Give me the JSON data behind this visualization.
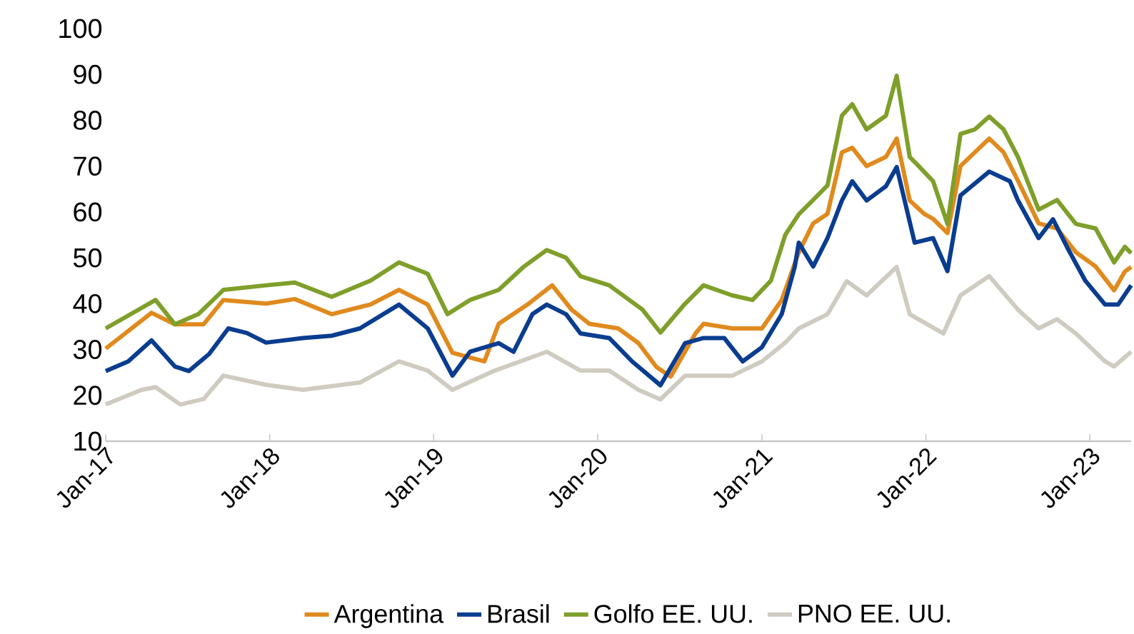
{
  "chart_data": {
    "type": "line",
    "xlim": [
      "2017-01-01",
      "2023-04-03"
    ],
    "xticks": [
      {
        "value": "2017-01-01",
        "label": "Jan-17"
      },
      {
        "value": "2018-01-01",
        "label": "Jan-18"
      },
      {
        "value": "2019-01-01",
        "label": "Jan-19"
      },
      {
        "value": "2020-01-01",
        "label": "Jan-20"
      },
      {
        "value": "2021-01-01",
        "label": "Jan-21"
      },
      {
        "value": "2022-01-01",
        "label": "Jan-22"
      },
      {
        "value": "2023-01-01",
        "label": "Jan-23"
      }
    ],
    "ylim": [
      10,
      100
    ],
    "yticks": [
      10,
      20,
      30,
      40,
      50,
      60,
      70,
      80,
      90,
      100
    ],
    "legend": "bottom",
    "series": [
      {
        "name": "Argentina",
        "color": "#e08a1e",
        "x": [
          "2017-01-01",
          "2017-04-13",
          "2017-06-04",
          "2017-08-07",
          "2017-09-20",
          "2017-12-24",
          "2018-02-26",
          "2018-05-19",
          "2018-08-13",
          "2018-10-16",
          "2018-12-19",
          "2019-02-12",
          "2019-04-24",
          "2019-05-26",
          "2019-07-29",
          "2019-09-22",
          "2019-11-04",
          "2019-12-14",
          "2020-02-16",
          "2020-04-01",
          "2020-05-11",
          "2020-06-12",
          "2020-08-06",
          "2020-08-24",
          "2020-10-27",
          "2021-01-01",
          "2021-02-14",
          "2021-03-24",
          "2021-04-25",
          "2021-05-27",
          "2021-06-28",
          "2021-07-21",
          "2021-08-22",
          "2021-10-04",
          "2021-10-28",
          "2021-11-26",
          "2021-12-28",
          "2022-01-17",
          "2022-02-18",
          "2022-03-19",
          "2022-05-22",
          "2022-06-23",
          "2022-07-25",
          "2022-09-09",
          "2022-10-20",
          "2022-12-01",
          "2023-01-14",
          "2023-02-24",
          "2023-03-20",
          "2023-04-03"
        ],
        "values": [
          30.2,
          38,
          35.5,
          35.5,
          40.8,
          40,
          41,
          37.7,
          39.8,
          43,
          39.8,
          29.3,
          27.4,
          35.6,
          39.8,
          44,
          38.7,
          35.6,
          34.6,
          31.4,
          26.2,
          24.1,
          33.5,
          35.6,
          34.6,
          34.6,
          40.8,
          51.2,
          57.5,
          59.6,
          73,
          74,
          70,
          72,
          76,
          62.5,
          59.6,
          58.5,
          55.4,
          70,
          76,
          73,
          66.8,
          57.5,
          56.4,
          51.2,
          48.1,
          42.9,
          47,
          48
        ]
      },
      {
        "name": "Brasil",
        "color": "#0a3d8f",
        "x": [
          "2017-01-01",
          "2017-02-20",
          "2017-04-13",
          "2017-06-04",
          "2017-07-05",
          "2017-08-19",
          "2017-10-01",
          "2017-11-11",
          "2017-12-24",
          "2018-03-16",
          "2018-05-19",
          "2018-07-21",
          "2018-10-16",
          "2018-12-19",
          "2019-02-12",
          "2019-03-23",
          "2019-05-26",
          "2019-06-28",
          "2019-08-09",
          "2019-09-10",
          "2019-10-23",
          "2019-11-24",
          "2020-01-27",
          "2020-03-18",
          "2020-05-20",
          "2020-07-14",
          "2020-08-24",
          "2020-10-09",
          "2020-11-19",
          "2021-01-01",
          "2021-02-14",
          "2021-03-15",
          "2021-03-24",
          "2021-04-25",
          "2021-05-27",
          "2021-06-28",
          "2021-07-21",
          "2021-08-22",
          "2021-10-04",
          "2021-10-28",
          "2021-12-07",
          "2022-01-17",
          "2022-02-18",
          "2022-03-19",
          "2022-05-22",
          "2022-07-07",
          "2022-07-25",
          "2022-09-09",
          "2022-10-11",
          "2022-11-12",
          "2022-12-22",
          "2023-02-04",
          "2023-03-05",
          "2023-04-03"
        ],
        "values": [
          25.3,
          27.4,
          32,
          26.3,
          25.3,
          29,
          34.6,
          33.6,
          31.5,
          32.5,
          33,
          34.6,
          39.8,
          34.6,
          24.3,
          29.5,
          31.4,
          29.5,
          37.7,
          39.8,
          37.7,
          33.5,
          32.5,
          27.4,
          22.2,
          31.4,
          32.5,
          32.5,
          27.4,
          30.5,
          37.7,
          48,
          53.3,
          48.1,
          54.3,
          62.5,
          66.7,
          62.5,
          65.6,
          69.8,
          53.3,
          54.3,
          47.1,
          63.6,
          68.8,
          66.7,
          62.5,
          54.3,
          58.4,
          52.2,
          45,
          39.8,
          39.8,
          44
        ]
      },
      {
        "name": "Golfo EE. UU.",
        "color": "#7f9f2a",
        "x": [
          "2017-01-01",
          "2017-04-22",
          "2017-06-04",
          "2017-07-26",
          "2017-09-20",
          "2017-12-24",
          "2018-02-26",
          "2018-05-19",
          "2018-08-13",
          "2018-10-16",
          "2018-12-19",
          "2019-02-01",
          "2019-03-23",
          "2019-05-26",
          "2019-07-20",
          "2019-09-10",
          "2019-10-23",
          "2019-11-24",
          "2020-01-27",
          "2020-04-10",
          "2020-05-20",
          "2020-07-14",
          "2020-08-24",
          "2020-10-27",
          "2020-12-11",
          "2021-01-21",
          "2021-02-22",
          "2021-03-24",
          "2021-04-25",
          "2021-05-27",
          "2021-06-28",
          "2021-07-21",
          "2021-08-22",
          "2021-10-04",
          "2021-10-28",
          "2021-11-26",
          "2021-12-16",
          "2022-01-17",
          "2022-02-18",
          "2022-03-19",
          "2022-04-20",
          "2022-05-22",
          "2022-06-23",
          "2022-07-25",
          "2022-09-09",
          "2022-10-20",
          "2022-12-01",
          "2023-01-14",
          "2023-02-24",
          "2023-03-20",
          "2023-04-03"
        ],
        "values": [
          34.6,
          40.8,
          35.5,
          37.7,
          43,
          44,
          44.6,
          41.5,
          45,
          49,
          46.5,
          37.7,
          40.8,
          43,
          48,
          51.7,
          50,
          46,
          44,
          38.7,
          33.7,
          40,
          44,
          41.8,
          40.8,
          45,
          55,
          59.5,
          62.6,
          65.8,
          81,
          83.5,
          78,
          81,
          89.7,
          72,
          70,
          66.7,
          57.4,
          77,
          78,
          80.8,
          78,
          72,
          60.5,
          62.6,
          57.4,
          56.4,
          49,
          52.4,
          51
        ]
      },
      {
        "name": "PNO EE. UU.",
        "color": "#d0cbc0",
        "x": [
          "2017-01-01",
          "2017-03-22",
          "2017-04-22",
          "2017-06-16",
          "2017-08-07",
          "2017-09-20",
          "2017-12-24",
          "2018-03-16",
          "2018-07-21",
          "2018-10-16",
          "2018-12-19",
          "2019-02-12",
          "2019-05-17",
          "2019-09-10",
          "2019-11-24",
          "2020-01-27",
          "2020-04-01",
          "2020-05-20",
          "2020-07-14",
          "2020-10-27",
          "2021-01-01",
          "2021-02-22",
          "2021-03-24",
          "2021-05-27",
          "2021-07-09",
          "2021-08-22",
          "2021-10-28",
          "2021-11-26",
          "2022-02-09",
          "2022-03-19",
          "2022-05-22",
          "2022-07-25",
          "2022-09-09",
          "2022-10-20",
          "2022-12-01",
          "2023-02-04",
          "2023-02-24",
          "2023-04-03"
        ],
        "values": [
          18,
          21.2,
          21.8,
          18,
          19.2,
          24.3,
          22.3,
          21.2,
          22.8,
          27.4,
          25.4,
          21.2,
          25.4,
          29.5,
          25.4,
          25.4,
          21.2,
          19.1,
          24.3,
          24.3,
          27.4,
          31.5,
          34.6,
          37.7,
          44.9,
          41.8,
          48,
          37.7,
          33.5,
          41.8,
          46,
          38.7,
          34.6,
          36.6,
          33.5,
          27.4,
          26.3,
          29.5
        ]
      }
    ]
  }
}
